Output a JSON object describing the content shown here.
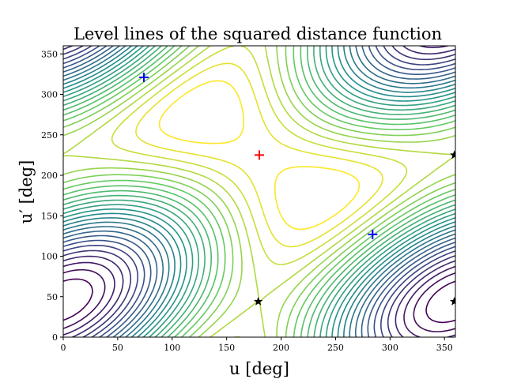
{
  "chart_data": {
    "type": "contour",
    "title": "Level lines of the squared distance function",
    "xlabel": "u [deg]",
    "ylabel": "u′ [deg]",
    "xlim": [
      0,
      360
    ],
    "ylim": [
      0,
      360
    ],
    "xticks": [
      0,
      50,
      100,
      150,
      200,
      250,
      300,
      350
    ],
    "yticks": [
      0,
      50,
      100,
      150,
      200,
      250,
      300,
      350
    ],
    "colormap": "viridis",
    "contour_levels": 26,
    "center": [
      180,
      225
    ],
    "markers": [
      {
        "kind": "plus",
        "color": "#ff0000",
        "u": 180,
        "u_prime": 225
      },
      {
        "kind": "plus",
        "color": "#0000ff",
        "u": 74,
        "u_prime": 321
      },
      {
        "kind": "plus",
        "color": "#0000ff",
        "u": 284,
        "u_prime": 127
      },
      {
        "kind": "star",
        "color": "#000000",
        "u": 179,
        "u_prime": 44
      },
      {
        "kind": "star",
        "color": "#000000",
        "u": 359,
        "u_prime": 44
      },
      {
        "kind": "star",
        "color": "#000000",
        "u": 359,
        "u_prime": 225
      }
    ]
  }
}
